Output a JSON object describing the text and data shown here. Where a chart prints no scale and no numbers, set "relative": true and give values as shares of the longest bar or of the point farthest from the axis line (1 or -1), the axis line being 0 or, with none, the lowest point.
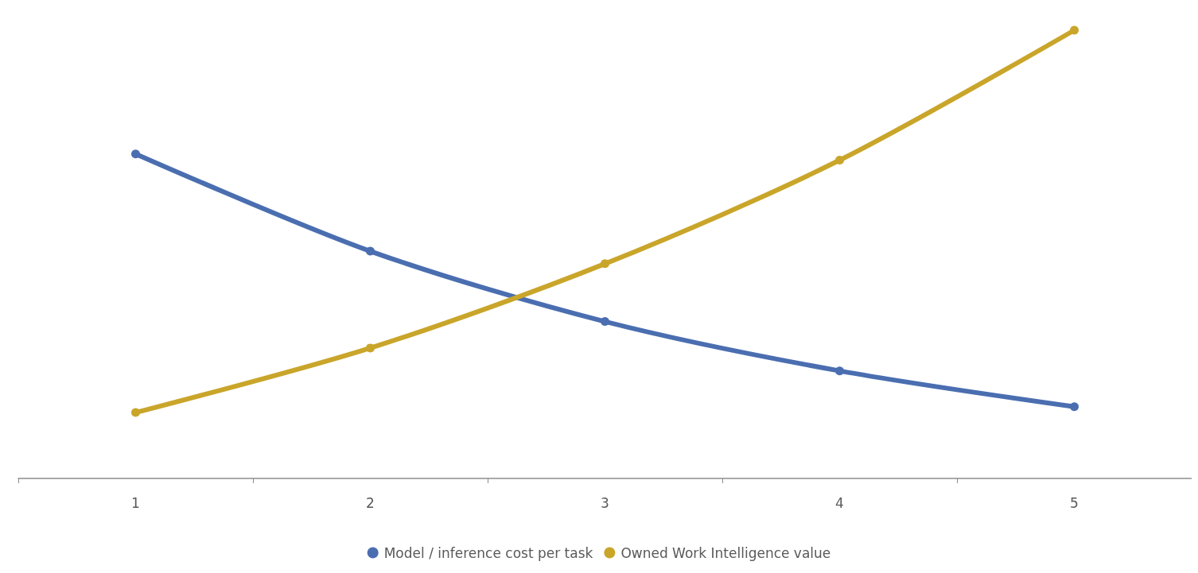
{
  "chart_data": {
    "type": "line",
    "relative": true,
    "categories": [
      "1",
      "2",
      "3",
      "4",
      "5"
    ],
    "series": [
      {
        "name": "Model / inference cost per task",
        "color": "#4a6eb0",
        "values": [
          0.724,
          0.507,
          0.35,
          0.24,
          0.16
        ]
      },
      {
        "name": "Owned Work Intelligence value",
        "color": "#c9a52a",
        "values": [
          0.147,
          0.291,
          0.479,
          0.71,
          1
        ]
      }
    ],
    "legend": "bottom",
    "marker": "circle",
    "line_style": "solid",
    "grid": false
  }
}
